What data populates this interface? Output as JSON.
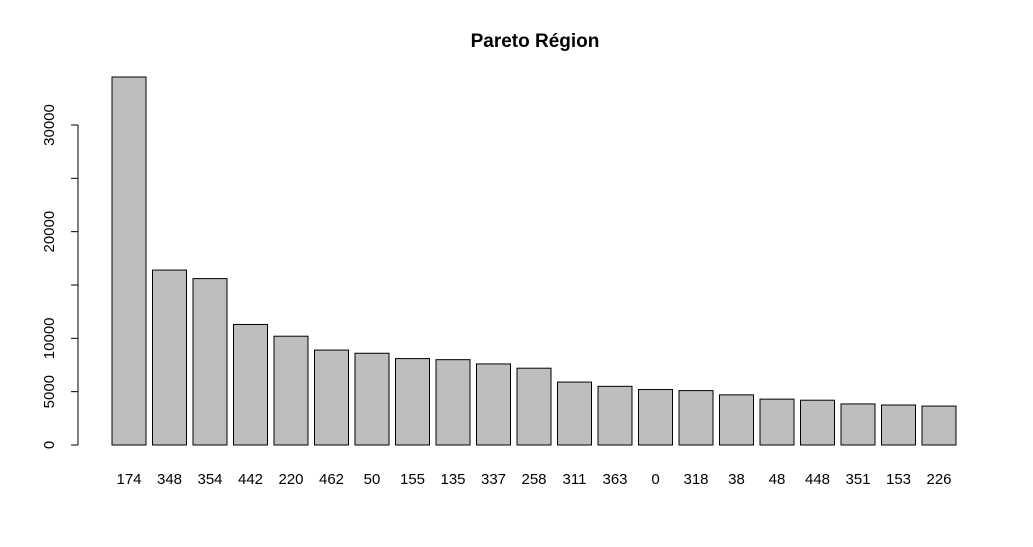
{
  "chart_data": {
    "type": "bar",
    "title": "Pareto Région",
    "xlabel": "",
    "ylabel": "",
    "categories": [
      "174",
      "348",
      "354",
      "442",
      "220",
      "462",
      "50",
      "155",
      "135",
      "337",
      "258",
      "311",
      "363",
      "0",
      "318",
      "38",
      "48",
      "448",
      "351",
      "153",
      "226"
    ],
    "values": [
      34500,
      16400,
      15600,
      11300,
      10200,
      8900,
      8600,
      8100,
      8000,
      7600,
      7200,
      5900,
      5500,
      5200,
      5100,
      4700,
      4300,
      4200,
      3850,
      3750,
      3650
    ],
    "yticks": [
      0,
      5000,
      10000,
      15000,
      20000,
      25000,
      30000
    ],
    "ytick_labels": [
      "0",
      "5000",
      "10000",
      "",
      "20000",
      "",
      "30000"
    ],
    "ylim": [
      0,
      34500
    ],
    "colors": {
      "bar_fill": "#bebebe",
      "bar_stroke": "#000000"
    }
  }
}
